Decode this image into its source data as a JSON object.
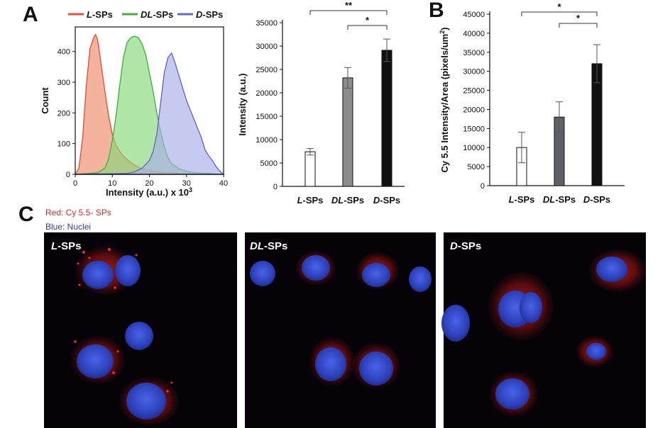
{
  "panels": {
    "a": "A",
    "b": "B",
    "c": "C"
  },
  "chart_data": [
    {
      "type": "area",
      "xlabel": "Intensity (a.u.) x 10",
      "xlabel_sup": "3",
      "ylabel": "Count",
      "xlim": [
        0,
        40
      ],
      "ylim": [
        0,
        480
      ],
      "xticks": [
        0,
        10,
        20,
        30,
        40
      ],
      "yticks": [
        0,
        100,
        200,
        300,
        400
      ],
      "legend_position": "top",
      "series": [
        {
          "name": "L-SPs",
          "name_prefix": "L",
          "name_suffix": "-SPs",
          "color": "#e8503a",
          "fill": "#f08a68",
          "x": [
            0,
            1,
            2,
            3,
            4,
            5,
            5.5,
            6,
            6.5,
            7,
            8,
            9,
            10,
            11,
            12,
            13,
            14,
            15,
            16,
            17,
            18,
            20,
            22,
            24,
            26,
            28,
            30,
            35,
            40
          ],
          "y": [
            0,
            20,
            120,
            290,
            410,
            445,
            455,
            440,
            400,
            355,
            270,
            190,
            130,
            95,
            75,
            60,
            48,
            38,
            30,
            24,
            18,
            12,
            8,
            6,
            5,
            3,
            2,
            1,
            0
          ]
        },
        {
          "name": "DL-SPs",
          "name_prefix": "DL",
          "name_suffix": "-SPs",
          "color": "#3fb53a",
          "fill": "#86d879",
          "x": [
            0,
            6,
            8,
            9,
            10,
            11,
            12,
            13,
            14,
            15,
            16,
            17,
            18,
            19,
            20,
            21,
            22,
            23,
            24,
            25,
            26,
            28,
            30,
            32,
            34,
            36,
            38,
            40
          ],
          "y": [
            0,
            5,
            20,
            50,
            110,
            190,
            290,
            380,
            430,
            445,
            450,
            445,
            425,
            390,
            330,
            270,
            200,
            140,
            90,
            55,
            35,
            18,
            10,
            6,
            4,
            3,
            1,
            0
          ]
        },
        {
          "name": "D-SPs",
          "name_prefix": "D",
          "name_suffix": "-SPs",
          "color": "#6a68c8",
          "fill": "#a8aee6",
          "x": [
            0,
            14,
            16,
            18,
            20,
            21,
            22,
            23,
            24,
            25,
            26,
            27,
            28,
            29,
            30,
            31,
            32,
            33,
            34,
            35,
            36,
            37,
            38,
            39,
            40
          ],
          "y": [
            0,
            3,
            8,
            20,
            45,
            75,
            130,
            230,
            330,
            380,
            395,
            360,
            320,
            280,
            240,
            210,
            180,
            150,
            120,
            80,
            60,
            45,
            25,
            10,
            0
          ]
        }
      ]
    },
    {
      "type": "bar",
      "ylabel": "Intensity (a.u.)",
      "ylim": [
        0,
        35000
      ],
      "yticks": [
        0,
        5000,
        10000,
        15000,
        20000,
        25000,
        30000,
        35000
      ],
      "categories": [
        {
          "prefix": "L",
          "suffix": "-SPs"
        },
        {
          "prefix": "DL",
          "suffix": "-SPs"
        },
        {
          "prefix": "D",
          "suffix": "-SPs"
        }
      ],
      "values": [
        7400,
        23200,
        29100
      ],
      "errors": [
        700,
        2200,
        2400
      ],
      "bar_colors": [
        "#ffffff",
        "#8c8c8c",
        "#111111"
      ],
      "significance": [
        {
          "from": 0,
          "to": 2,
          "label": "**",
          "level": 1
        },
        {
          "from": 1,
          "to": 2,
          "label": "*",
          "level": 0
        }
      ]
    },
    {
      "type": "bar",
      "ylabel": "Cy 5.5 Intensity/Area (pixels/um",
      "ylabel_sup": "2",
      "ylabel_tail": ")",
      "ylim": [
        0,
        45000
      ],
      "yticks": [
        0,
        5000,
        10000,
        15000,
        20000,
        25000,
        30000,
        35000,
        40000,
        45000
      ],
      "categories": [
        {
          "prefix": "L",
          "suffix": "-SPs"
        },
        {
          "prefix": "DL",
          "suffix": "-SPs"
        },
        {
          "prefix": "D",
          "suffix": "-SPs"
        }
      ],
      "values": [
        10000,
        18000,
        32000
      ],
      "errors": [
        4000,
        4000,
        5000
      ],
      "bar_colors": [
        "#ffffff",
        "#5e6166",
        "#111111"
      ],
      "significance": [
        {
          "from": 0,
          "to": 2,
          "label": "*",
          "level": 1
        },
        {
          "from": 1,
          "to": 2,
          "label": "*",
          "level": 0
        }
      ]
    }
  ],
  "panel_c": {
    "legend_red": "Red: Cy 5.5- SPs",
    "legend_blue": "Blue: Nuclei",
    "legend_red_color": "#e8251f",
    "legend_blue_color": "#2d3fc0",
    "images": [
      {
        "label_prefix": "L",
        "label_suffix": "-SPs"
      },
      {
        "label_prefix": "DL",
        "label_suffix": "-SPs"
      },
      {
        "label_prefix": "D",
        "label_suffix": "-SPs"
      }
    ]
  }
}
